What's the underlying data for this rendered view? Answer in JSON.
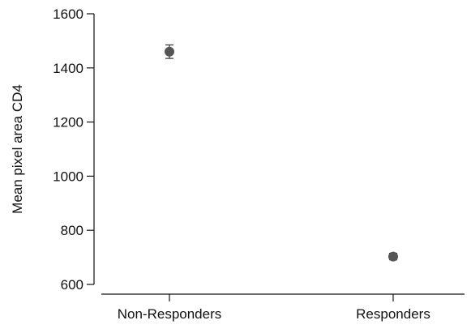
{
  "chart_data": {
    "type": "scatter",
    "title": "",
    "xlabel": "",
    "ylabel": "Mean pixel area CD4",
    "categories": [
      "Non-Responders",
      "Responders"
    ],
    "series": [
      {
        "values": [
          1460,
          703
        ],
        "error": [
          25,
          12
        ],
        "marker": "circle",
        "color": "#555555"
      }
    ],
    "ylim": [
      580,
      1600
    ],
    "yticks": [
      600,
      800,
      1000,
      1200,
      1400,
      1600
    ],
    "grid": false,
    "legend": "none"
  }
}
